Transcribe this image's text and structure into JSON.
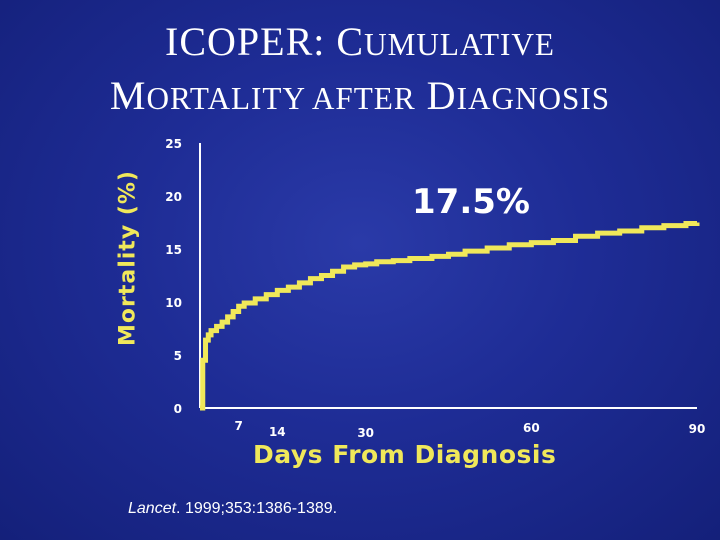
{
  "title": {
    "line1_cap": "ICOPER:",
    "line1_c": "C",
    "line1_rest": "UMULATIVE",
    "line2_m": "M",
    "line2_rest": "ORTALITY AFTER",
    "line2_d": "D",
    "line2_rest2": "IAGNOSIS"
  },
  "citation": {
    "journal": "Lancet",
    "details": ". 1999;353:1386-1389."
  },
  "colors": {
    "line": "#f0e85a",
    "axis": "#ffffff",
    "background": "#1e2c95"
  },
  "chart_data": {
    "type": "line",
    "title": "ICOPER: CUMULATIVE MORTALITY AFTER DIAGNOSIS",
    "xlabel": "Days From Diagnosis",
    "ylabel": "Mortality (%)",
    "xlim": [
      0,
      90
    ],
    "ylim": [
      0,
      25
    ],
    "x_ticks": [
      "7",
      "14",
      "30",
      "60",
      "90"
    ],
    "y_ticks": [
      "0",
      "5",
      "10",
      "15",
      "20",
      "25"
    ],
    "annotation": "17.5%",
    "series": [
      {
        "x": [
          0,
          0.5,
          1,
          1.5,
          2,
          3,
          4,
          5,
          6,
          7,
          8,
          10,
          12,
          14,
          16,
          18,
          20,
          22,
          24,
          26,
          28,
          30,
          32,
          35,
          38,
          42,
          45,
          48,
          52,
          56,
          60,
          64,
          68,
          72,
          76,
          80,
          84,
          88,
          90
        ],
        "y": [
          0,
          4.5,
          6.4,
          6.9,
          7.3,
          7.7,
          8.1,
          8.6,
          9.1,
          9.6,
          9.9,
          10.3,
          10.7,
          11.1,
          11.4,
          11.8,
          12.2,
          12.5,
          12.9,
          13.3,
          13.5,
          13.6,
          13.8,
          13.9,
          14.1,
          14.3,
          14.5,
          14.8,
          15.1,
          15.4,
          15.6,
          15.8,
          16.2,
          16.5,
          16.7,
          17.0,
          17.2,
          17.4,
          17.5
        ]
      }
    ]
  }
}
